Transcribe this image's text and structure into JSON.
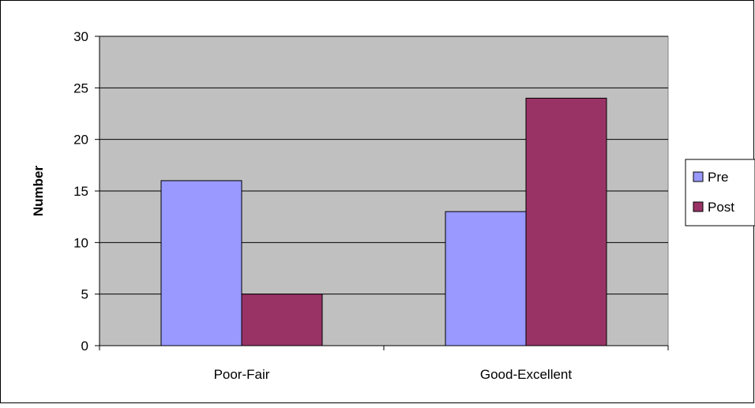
{
  "chart_data": {
    "type": "bar",
    "categories": [
      "Poor-Fair",
      "Good-Excellent"
    ],
    "series": [
      {
        "name": "Pre",
        "values": [
          16,
          13
        ],
        "color": "#9999ff"
      },
      {
        "name": "Post",
        "values": [
          5,
          24
        ],
        "color": "#993366"
      }
    ],
    "ylabel": "Number",
    "xlabel": "",
    "ylim": [
      0,
      30
    ],
    "yticks": [
      "0",
      "5",
      "10",
      "15",
      "20",
      "25",
      "30"
    ],
    "grid": true,
    "legend_position": "right",
    "plot_background": "#c0c0c0"
  }
}
